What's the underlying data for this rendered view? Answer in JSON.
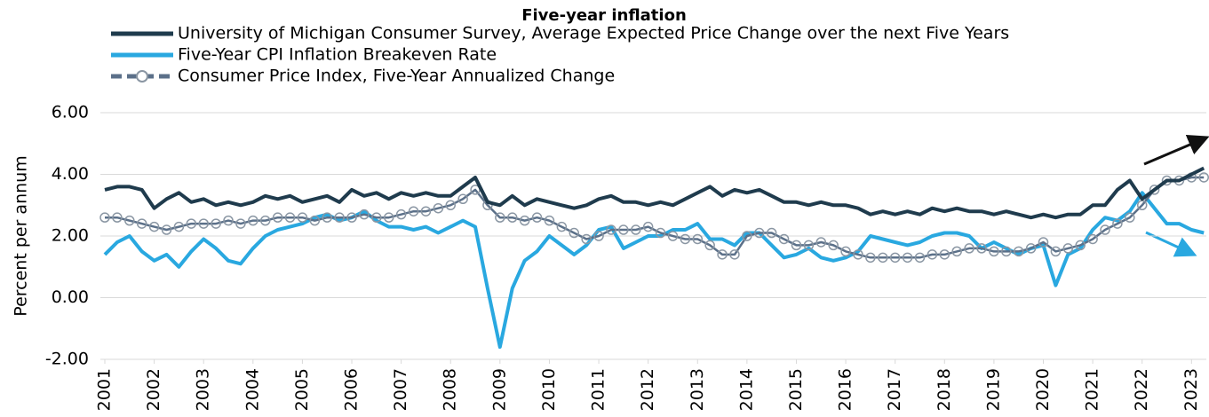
{
  "chart_data": {
    "type": "line",
    "title": "Five-year inflation",
    "y_label": "Percent per annum",
    "legend": "top",
    "grid": true,
    "x": [
      2001,
      2001.25,
      2001.5,
      2001.75,
      2002,
      2002.25,
      2002.5,
      2002.75,
      2003,
      2003.25,
      2003.5,
      2003.75,
      2004,
      2004.25,
      2004.5,
      2004.75,
      2005,
      2005.25,
      2005.5,
      2005.75,
      2006,
      2006.25,
      2006.5,
      2006.75,
      2007,
      2007.25,
      2007.5,
      2007.75,
      2008,
      2008.25,
      2008.5,
      2008.75,
      2009,
      2009.25,
      2009.5,
      2009.75,
      2010,
      2010.25,
      2010.5,
      2010.75,
      2011,
      2011.25,
      2011.5,
      2011.75,
      2012,
      2012.25,
      2012.5,
      2012.75,
      2013,
      2013.25,
      2013.5,
      2013.75,
      2014,
      2014.25,
      2014.5,
      2014.75,
      2015,
      2015.25,
      2015.5,
      2015.75,
      2016,
      2016.25,
      2016.5,
      2016.75,
      2017,
      2017.25,
      2017.5,
      2017.75,
      2018,
      2018.25,
      2018.5,
      2018.75,
      2019,
      2019.25,
      2019.5,
      2019.75,
      2020,
      2020.25,
      2020.5,
      2020.75,
      2021,
      2021.25,
      2021.5,
      2021.75,
      2022,
      2022.25,
      2022.5,
      2022.75,
      2023,
      2023.25
    ],
    "xlim": [
      2001,
      2023.3
    ],
    "xticks": [
      2001,
      2002,
      2003,
      2004,
      2005,
      2006,
      2007,
      2008,
      2009,
      2010,
      2011,
      2012,
      2013,
      2014,
      2015,
      2016,
      2017,
      2018,
      2019,
      2020,
      2021,
      2022,
      2023
    ],
    "ylim": [
      -2,
      6
    ],
    "yticks": [
      {
        "value": -2,
        "label": "-2.00"
      },
      {
        "value": 0,
        "label": "0.00"
      },
      {
        "value": 2,
        "label": "2.00"
      },
      {
        "value": 4,
        "label": "4.00"
      },
      {
        "value": 6,
        "label": "6.00"
      }
    ],
    "series": [
      {
        "name": "University of Michigan Consumer Survey, Average Expected Price Change over the next Five Years",
        "color": "#1f3b4d",
        "values": [
          3.5,
          3.6,
          3.6,
          3.5,
          2.9,
          3.2,
          3.4,
          3.1,
          3.2,
          3.0,
          3.1,
          3.0,
          3.1,
          3.3,
          3.2,
          3.3,
          3.1,
          3.2,
          3.3,
          3.1,
          3.5,
          3.3,
          3.4,
          3.2,
          3.4,
          3.3,
          3.4,
          3.3,
          3.3,
          3.6,
          3.9,
          3.1,
          3.0,
          3.3,
          3.0,
          3.2,
          3.1,
          3.0,
          2.9,
          3.0,
          3.2,
          3.3,
          3.1,
          3.1,
          3.0,
          3.1,
          3.0,
          3.2,
          3.4,
          3.6,
          3.3,
          3.5,
          3.4,
          3.5,
          3.3,
          3.1,
          3.1,
          3.0,
          3.1,
          3.0,
          3.0,
          2.9,
          2.7,
          2.8,
          2.7,
          2.8,
          2.7,
          2.9,
          2.8,
          2.9,
          2.8,
          2.8,
          2.7,
          2.8,
          2.7,
          2.6,
          2.7,
          2.6,
          2.7,
          2.7,
          3.0,
          3.0,
          3.5,
          3.8,
          3.2,
          3.5,
          3.8,
          3.8,
          4.0,
          4.2
        ]
      },
      {
        "name": "Five-Year CPI Inflation Breakeven Rate",
        "color": "#29a8e0",
        "values": [
          1.4,
          1.8,
          2.0,
          1.5,
          1.2,
          1.4,
          1.0,
          1.5,
          1.9,
          1.6,
          1.2,
          1.1,
          1.6,
          2.0,
          2.2,
          2.3,
          2.4,
          2.6,
          2.7,
          2.5,
          2.6,
          2.8,
          2.5,
          2.3,
          2.3,
          2.2,
          2.3,
          2.1,
          2.3,
          2.5,
          2.3,
          0.3,
          -1.6,
          0.3,
          1.2,
          1.5,
          2.0,
          1.7,
          1.4,
          1.7,
          2.2,
          2.3,
          1.6,
          1.8,
          2.0,
          2.0,
          2.2,
          2.2,
          2.4,
          1.9,
          1.9,
          1.7,
          2.1,
          2.1,
          1.7,
          1.3,
          1.4,
          1.6,
          1.3,
          1.2,
          1.3,
          1.5,
          2.0,
          1.9,
          1.8,
          1.7,
          1.8,
          2.0,
          2.1,
          2.1,
          2.0,
          1.6,
          1.8,
          1.6,
          1.4,
          1.6,
          1.7,
          0.4,
          1.4,
          1.6,
          2.2,
          2.6,
          2.5,
          2.8,
          3.4,
          2.9,
          2.4,
          2.4,
          2.2,
          2.1
        ]
      },
      {
        "name": "Consumer Price Index, Five-Year Annualized Change",
        "color": "#5b7089",
        "marker": "circle",
        "dash": true,
        "values": [
          2.6,
          2.6,
          2.5,
          2.4,
          2.3,
          2.2,
          2.3,
          2.4,
          2.4,
          2.4,
          2.5,
          2.4,
          2.5,
          2.5,
          2.6,
          2.6,
          2.6,
          2.5,
          2.6,
          2.6,
          2.6,
          2.7,
          2.6,
          2.6,
          2.7,
          2.8,
          2.8,
          2.9,
          3.0,
          3.2,
          3.5,
          3.0,
          2.6,
          2.6,
          2.5,
          2.6,
          2.5,
          2.3,
          2.1,
          1.9,
          2.0,
          2.2,
          2.2,
          2.2,
          2.3,
          2.1,
          2.0,
          1.9,
          1.9,
          1.7,
          1.4,
          1.4,
          2.0,
          2.1,
          2.1,
          1.9,
          1.7,
          1.7,
          1.8,
          1.7,
          1.5,
          1.4,
          1.3,
          1.3,
          1.3,
          1.3,
          1.3,
          1.4,
          1.4,
          1.5,
          1.6,
          1.6,
          1.5,
          1.5,
          1.5,
          1.6,
          1.8,
          1.5,
          1.6,
          1.7,
          1.9,
          2.2,
          2.4,
          2.6,
          3.0,
          3.5,
          3.8,
          3.8,
          3.9,
          3.9
        ]
      }
    ]
  }
}
